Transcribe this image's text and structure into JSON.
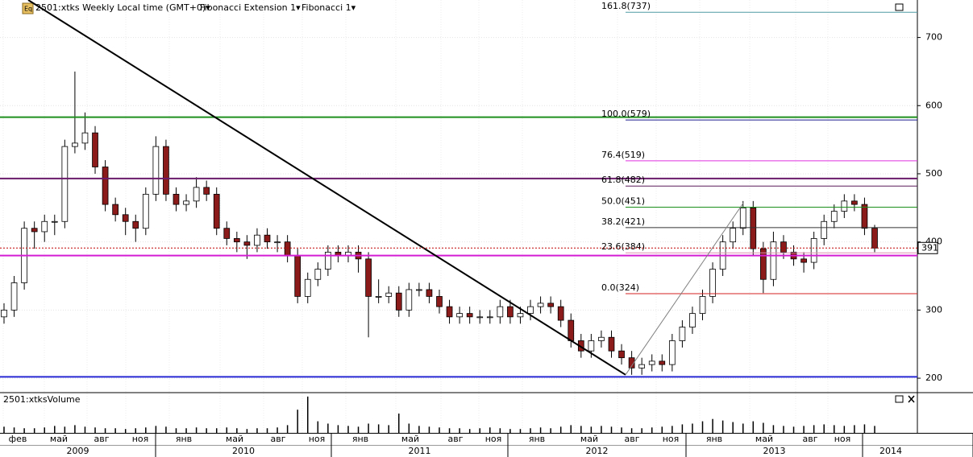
{
  "chart_data": {
    "type": "candlestick",
    "icon": "Eq",
    "title": "2501:xtks Weekly Local time (GMT+0)▾",
    "indicators": [
      "Fibonacci Extension 1▾",
      "Fibonacci 1▾"
    ],
    "open": [
      290,
      300,
      340,
      420,
      415,
      430,
      430,
      540,
      545,
      560,
      510,
      455,
      440,
      430,
      420,
      470,
      540,
      470,
      455,
      460,
      480,
      470,
      420,
      405,
      400,
      395,
      410,
      400,
      400,
      380,
      320,
      345,
      360,
      385,
      380,
      385,
      375,
      320,
      320,
      325,
      300,
      330,
      330,
      320,
      305,
      290,
      295,
      290,
      290,
      290,
      305,
      290,
      295,
      305,
      310,
      305,
      285,
      255,
      240,
      255,
      260,
      240,
      230,
      215,
      220,
      225,
      220,
      255,
      275,
      295,
      320,
      360,
      400,
      420,
      450,
      390,
      345,
      400,
      385,
      375,
      370,
      405,
      430,
      445,
      460,
      455,
      420
    ],
    "high": [
      310,
      350,
      430,
      430,
      440,
      440,
      550,
      650,
      590,
      570,
      520,
      465,
      450,
      440,
      480,
      555,
      550,
      480,
      470,
      495,
      490,
      480,
      430,
      415,
      410,
      420,
      420,
      410,
      410,
      390,
      355,
      370,
      395,
      395,
      395,
      395,
      385,
      345,
      335,
      335,
      340,
      340,
      340,
      330,
      315,
      305,
      305,
      300,
      300,
      315,
      315,
      305,
      315,
      320,
      320,
      315,
      295,
      265,
      265,
      270,
      270,
      250,
      240,
      230,
      235,
      235,
      265,
      285,
      305,
      330,
      370,
      410,
      430,
      460,
      460,
      400,
      415,
      410,
      395,
      385,
      415,
      440,
      455,
      470,
      470,
      465,
      425
    ],
    "low": [
      280,
      290,
      330,
      390,
      400,
      410,
      420,
      530,
      535,
      500,
      445,
      430,
      410,
      400,
      410,
      460,
      460,
      445,
      445,
      450,
      460,
      410,
      395,
      385,
      375,
      385,
      390,
      385,
      370,
      310,
      310,
      335,
      350,
      370,
      370,
      355,
      260,
      310,
      310,
      290,
      290,
      320,
      310,
      295,
      280,
      280,
      280,
      280,
      280,
      280,
      280,
      280,
      285,
      295,
      295,
      275,
      245,
      230,
      230,
      245,
      230,
      220,
      205,
      205,
      210,
      210,
      210,
      245,
      265,
      285,
      310,
      350,
      390,
      410,
      380,
      325,
      335,
      375,
      365,
      355,
      360,
      395,
      420,
      435,
      445,
      410,
      385
    ],
    "close": [
      300,
      340,
      420,
      415,
      430,
      430,
      540,
      545,
      560,
      510,
      455,
      440,
      430,
      420,
      470,
      540,
      470,
      455,
      460,
      480,
      470,
      420,
      405,
      400,
      395,
      410,
      400,
      400,
      380,
      320,
      345,
      360,
      385,
      380,
      385,
      375,
      320,
      320,
      325,
      300,
      330,
      330,
      320,
      305,
      290,
      295,
      290,
      290,
      290,
      305,
      290,
      295,
      305,
      310,
      305,
      285,
      255,
      240,
      255,
      260,
      240,
      230,
      215,
      220,
      225,
      220,
      255,
      275,
      295,
      320,
      360,
      400,
      420,
      450,
      390,
      345,
      400,
      385,
      375,
      370,
      405,
      430,
      445,
      460,
      455,
      420,
      391
    ],
    "up_color": "#ffffff",
    "down_color": "#8b1a1a",
    "ylim": [
      180,
      755
    ],
    "yticks": [
      200,
      300,
      400,
      500,
      600,
      700
    ],
    "grid": true,
    "last_price": 391,
    "horizontal_lines": [
      {
        "value": 583,
        "color": "#1f8f1f"
      },
      {
        "value": 493,
        "color": "#6a1a6a"
      },
      {
        "value": 380,
        "color": "#d41cd4"
      },
      {
        "value": 202,
        "color": "#2a2ad4"
      }
    ],
    "trend_lines": [
      {
        "color": "#000000",
        "values": [
          755,
          205
        ]
      },
      {
        "color": "#808080",
        "values": [
          205,
          457
        ]
      }
    ],
    "fibonacci": [
      {
        "label": "161.8(737)",
        "value": 737,
        "color": "#4e9aa4"
      },
      {
        "label": "100.0(579)",
        "value": 579,
        "color": "#1a1a8f"
      },
      {
        "label": "76.4(519)",
        "value": 519,
        "color": "#e032e0"
      },
      {
        "label": "61.8(482)",
        "value": 482,
        "color": "#5a1a5a"
      },
      {
        "label": "50.0(451)",
        "value": 451,
        "color": "#1a8f1a"
      },
      {
        "label": "38.2(421)",
        "value": 421,
        "color": "#333333"
      },
      {
        "label": "23.6(384)",
        "value": 384,
        "color": "#e090b0"
      },
      {
        "label": "0.0(324)",
        "value": 324,
        "color": "#d42020"
      }
    ],
    "months": [
      "фев",
      "май",
      "авг",
      "ноя",
      "янв",
      "май",
      "авг",
      "ноя",
      "янв",
      "май",
      "авг",
      "ноя",
      "янв",
      "май",
      "авг",
      "ноя",
      "янв",
      "май",
      "авг",
      "ноя"
    ],
    "years": [
      "2009",
      "2010",
      "2011",
      "2012",
      "2013",
      "2014"
    ],
    "volume": {
      "title": "2501:xtksVolume",
      "color": "#000000",
      "values": [
        8,
        7,
        6,
        6,
        7,
        9,
        8,
        10,
        8,
        7,
        6,
        6,
        5,
        6,
        7,
        9,
        8,
        6,
        6,
        7,
        6,
        6,
        7,
        6,
        5,
        6,
        6,
        7,
        10,
        30,
        47,
        15,
        12,
        10,
        9,
        8,
        12,
        11,
        10,
        25,
        12,
        9,
        8,
        7,
        6,
        6,
        5,
        6,
        7,
        6,
        5,
        5,
        6,
        7,
        6,
        8,
        10,
        9,
        8,
        9,
        8,
        7,
        6,
        6,
        7,
        8,
        9,
        11,
        12,
        15,
        18,
        16,
        14,
        12,
        15,
        13,
        10,
        9,
        8,
        9,
        10,
        11,
        10,
        9,
        10,
        11,
        9
      ],
      "ylim": [
        0,
        50
      ]
    }
  }
}
